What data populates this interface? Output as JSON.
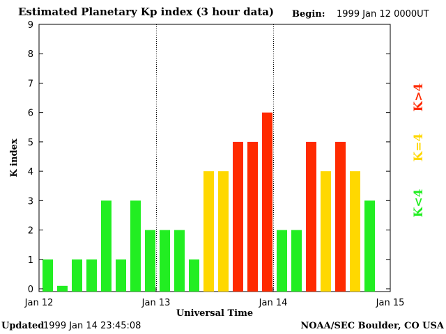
{
  "header": {
    "title": "Estimated Planetary Kp index (3 hour data)",
    "begin_label": "Begin:",
    "begin_value": "1999 Jan 12 0000UT"
  },
  "footer": {
    "updated_label": "Updated",
    "updated_value": "1999 Jan 14 23:45:08",
    "credit": "NOAA/SEC Boulder, CO USA"
  },
  "colors": {
    "low": "#22ee22",
    "mid": "#ffd800",
    "high": "#ff2a00"
  },
  "chart_data": {
    "type": "bar",
    "title": "Estimated Planetary Kp index (3 hour data)",
    "xlabel": "Universal Time",
    "ylabel": "K index",
    "ylim": [
      0,
      9
    ],
    "yticks": [
      "0",
      "1",
      "2",
      "3",
      "4",
      "5",
      "6",
      "7",
      "8",
      "9"
    ],
    "xlim": [
      0,
      24
    ],
    "xticks": [
      {
        "value": 0,
        "label": "Jan 12"
      },
      {
        "value": 8,
        "label": "Jan 13"
      },
      {
        "value": 16,
        "label": "Jan 14"
      },
      {
        "value": 24,
        "label": "Jan 15"
      }
    ],
    "day_dividers": [
      8,
      16
    ],
    "bar_interval_hours": 3,
    "values": [
      1,
      0.1,
      1,
      1,
      3,
      1,
      3,
      2,
      2,
      2,
      1,
      4,
      4,
      5,
      5,
      6,
      2,
      2,
      5,
      4,
      5,
      4,
      3
    ],
    "legend": [
      {
        "label": "K<4",
        "color_key": "low"
      },
      {
        "label": "K=4",
        "color_key": "mid"
      },
      {
        "label": "K>4",
        "color_key": "high"
      }
    ]
  }
}
